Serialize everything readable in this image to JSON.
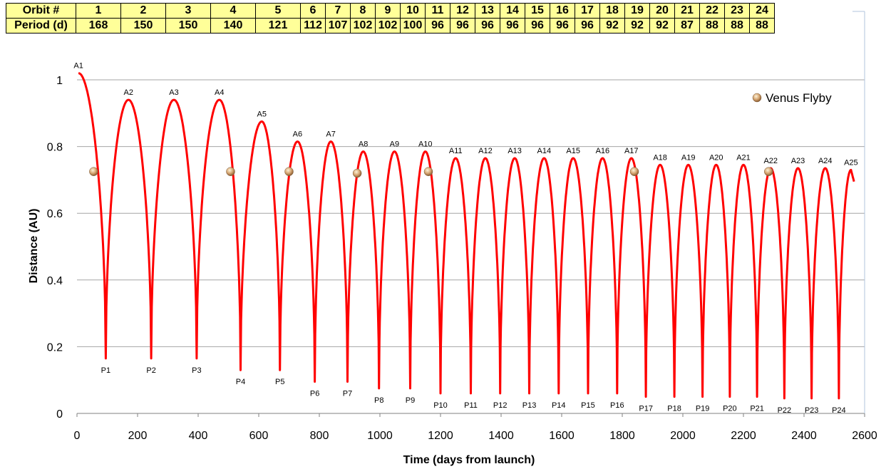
{
  "table": {
    "row1_header": "Orbit #",
    "row2_header": "Period (d)",
    "orbits": [
      "1",
      "2",
      "3",
      "4",
      "5",
      "6",
      "7",
      "8",
      "9",
      "10",
      "11",
      "12",
      "13",
      "14",
      "15",
      "16",
      "17",
      "18",
      "19",
      "20",
      "21",
      "22",
      "23",
      "24"
    ],
    "periods": [
      "168",
      "150",
      "150",
      "140",
      "121",
      "112",
      "107",
      "102",
      "102",
      "100",
      "96",
      "96",
      "96",
      "96",
      "96",
      "96",
      "96",
      "92",
      "92",
      "92",
      "87",
      "88",
      "88",
      "88"
    ]
  },
  "chart_data": {
    "type": "line",
    "title": "",
    "xlabel": "Time (days from launch)",
    "ylabel": "Distance (AU)",
    "xlim": [
      0,
      2600
    ],
    "ylim": [
      0,
      1.05
    ],
    "x_ticks": [
      "0",
      "200",
      "400",
      "600",
      "800",
      "1000",
      "1200",
      "1400",
      "1600",
      "1800",
      "2000",
      "2200",
      "2400",
      "2600"
    ],
    "y_ticks": [
      "0",
      "0.2",
      "0.4",
      "0.6",
      "0.8",
      "1"
    ],
    "grid": "horizontal",
    "line_color": "#ff0000",
    "apoapses": [
      {
        "label": "A1",
        "x": 5,
        "y": 1.02
      },
      {
        "label": "A2",
        "x": 170,
        "y": 0.94
      },
      {
        "label": "A3",
        "x": 320,
        "y": 0.94
      },
      {
        "label": "A4",
        "x": 470,
        "y": 0.94
      },
      {
        "label": "A5",
        "x": 610,
        "y": 0.875
      },
      {
        "label": "A6",
        "x": 728,
        "y": 0.815
      },
      {
        "label": "A7",
        "x": 838,
        "y": 0.815
      },
      {
        "label": "A8",
        "x": 945,
        "y": 0.785
      },
      {
        "label": "A9",
        "x": 1048,
        "y": 0.785
      },
      {
        "label": "A10",
        "x": 1150,
        "y": 0.785
      },
      {
        "label": "A11",
        "x": 1250,
        "y": 0.765
      },
      {
        "label": "A12",
        "x": 1348,
        "y": 0.765
      },
      {
        "label": "A13",
        "x": 1445,
        "y": 0.765
      },
      {
        "label": "A14",
        "x": 1542,
        "y": 0.765
      },
      {
        "label": "A15",
        "x": 1638,
        "y": 0.765
      },
      {
        "label": "A16",
        "x": 1735,
        "y": 0.765
      },
      {
        "label": "A17",
        "x": 1830,
        "y": 0.765
      },
      {
        "label": "A18",
        "x": 1925,
        "y": 0.745
      },
      {
        "label": "A19",
        "x": 2018,
        "y": 0.745
      },
      {
        "label": "A20",
        "x": 2110,
        "y": 0.745
      },
      {
        "label": "A21",
        "x": 2200,
        "y": 0.745
      },
      {
        "label": "A22",
        "x": 2290,
        "y": 0.735
      },
      {
        "label": "A23",
        "x": 2380,
        "y": 0.735
      },
      {
        "label": "A24",
        "x": 2470,
        "y": 0.735
      },
      {
        "label": "A25",
        "x": 2555,
        "y": 0.73
      }
    ],
    "periapses": [
      {
        "label": "P1",
        "x": 95,
        "y": 0.165
      },
      {
        "label": "P2",
        "x": 245,
        "y": 0.165
      },
      {
        "label": "P3",
        "x": 395,
        "y": 0.165
      },
      {
        "label": "P4",
        "x": 540,
        "y": 0.13
      },
      {
        "label": "P5",
        "x": 670,
        "y": 0.13
      },
      {
        "label": "P6",
        "x": 785,
        "y": 0.095
      },
      {
        "label": "P7",
        "x": 893,
        "y": 0.095
      },
      {
        "label": "P8",
        "x": 997,
        "y": 0.075
      },
      {
        "label": "P9",
        "x": 1100,
        "y": 0.075
      },
      {
        "label": "P10",
        "x": 1200,
        "y": 0.06
      },
      {
        "label": "P11",
        "x": 1300,
        "y": 0.06
      },
      {
        "label": "P12",
        "x": 1397,
        "y": 0.06
      },
      {
        "label": "P13",
        "x": 1493,
        "y": 0.06
      },
      {
        "label": "P14",
        "x": 1590,
        "y": 0.06
      },
      {
        "label": "P15",
        "x": 1687,
        "y": 0.06
      },
      {
        "label": "P16",
        "x": 1783,
        "y": 0.06
      },
      {
        "label": "P17",
        "x": 1878,
        "y": 0.05
      },
      {
        "label": "P18",
        "x": 1972,
        "y": 0.05
      },
      {
        "label": "P19",
        "x": 2065,
        "y": 0.05
      },
      {
        "label": "P20",
        "x": 2155,
        "y": 0.05
      },
      {
        "label": "P21",
        "x": 2245,
        "y": 0.05
      },
      {
        "label": "P22",
        "x": 2335,
        "y": 0.045
      },
      {
        "label": "P23",
        "x": 2425,
        "y": 0.045
      },
      {
        "label": "P24",
        "x": 2515,
        "y": 0.045
      }
    ],
    "end_point": {
      "x": 2565,
      "y": 0.695
    },
    "venus_flybys": [
      {
        "x": 55,
        "y": 0.725
      },
      {
        "x": 507,
        "y": 0.725
      },
      {
        "x": 700,
        "y": 0.725
      },
      {
        "x": 925,
        "y": 0.72
      },
      {
        "x": 1160,
        "y": 0.725
      },
      {
        "x": 1840,
        "y": 0.725
      },
      {
        "x": 2283,
        "y": 0.725
      }
    ],
    "legend": {
      "label": "Venus Flyby",
      "placement": "top-right"
    }
  }
}
